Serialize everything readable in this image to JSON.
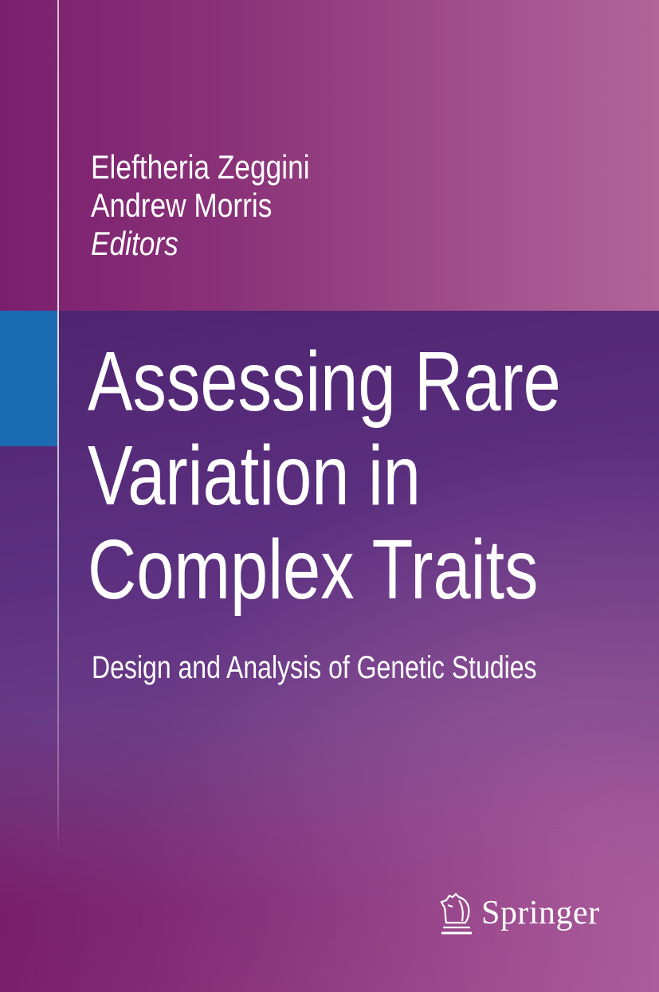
{
  "cover": {
    "editors": [
      "Eleftheria Zeggini",
      "Andrew Morris"
    ],
    "editors_role": "Editors",
    "title_lines": [
      "Assessing Rare",
      "Variation in",
      "Complex Traits"
    ],
    "subtitle": "Design and Analysis of Genetic Studies",
    "publisher": "Springer",
    "colors": {
      "top_band": "#8a3278",
      "main": "#5a2a78",
      "accent_block": "#1b6cb3"
    }
  }
}
